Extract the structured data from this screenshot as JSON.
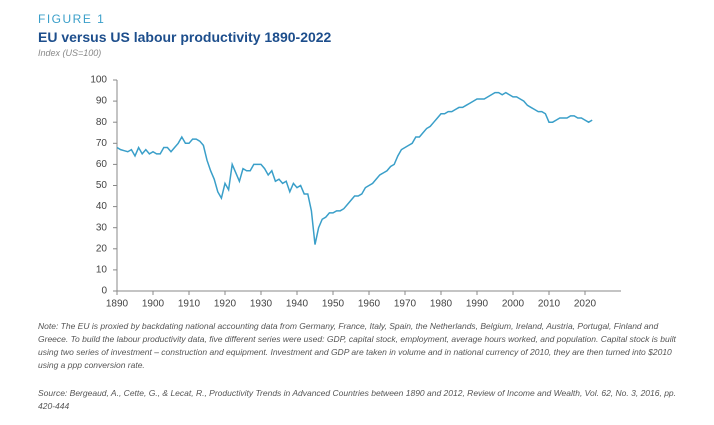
{
  "chart_data": {
    "type": "line",
    "figure_label": "FIGURE 1",
    "title": "EU versus US labour productivity 1890-2022",
    "subtitle": "Index (US=100)",
    "note": "Note: The EU is proxied by backdating national accounting data from Germany, France, Italy, Spain, the Netherlands, Belgium, Ireland, Austria, Portugal, Finland and Greece. To build the labour productivity data, five different series were used: GDP, capital stock, employment, average hours worked, and population. Capital stock is built using two series of investment – construction and equipment. Investment and GDP are taken in volume and in national currency of 2010, they are then turned into $2010 using a ppp conversion rate.",
    "source": "Source: Bergeaud, A., Cette, G., & Lecat, R., Productivity Trends in Advanced Countries between 1890 and 2012, Review of Income and Wealth, Vol. 62, No. 3, 2016, pp. 420-444",
    "x": [
      1890,
      1891,
      1892,
      1893,
      1894,
      1895,
      1896,
      1897,
      1898,
      1899,
      1900,
      1901,
      1902,
      1903,
      1904,
      1905,
      1906,
      1907,
      1908,
      1909,
      1910,
      1911,
      1912,
      1913,
      1914,
      1915,
      1916,
      1917,
      1918,
      1919,
      1920,
      1921,
      1922,
      1923,
      1924,
      1925,
      1926,
      1927,
      1928,
      1929,
      1930,
      1931,
      1932,
      1933,
      1934,
      1935,
      1936,
      1937,
      1938,
      1939,
      1940,
      1941,
      1942,
      1943,
      1944,
      1945,
      1946,
      1947,
      1948,
      1949,
      1950,
      1951,
      1952,
      1953,
      1954,
      1955,
      1956,
      1957,
      1958,
      1959,
      1960,
      1961,
      1962,
      1963,
      1964,
      1965,
      1966,
      1967,
      1968,
      1969,
      1970,
      1971,
      1972,
      1973,
      1974,
      1975,
      1976,
      1977,
      1978,
      1979,
      1980,
      1981,
      1982,
      1983,
      1984,
      1985,
      1986,
      1987,
      1988,
      1989,
      1990,
      1991,
      1992,
      1993,
      1994,
      1995,
      1996,
      1997,
      1998,
      1999,
      2000,
      2001,
      2002,
      2003,
      2004,
      2005,
      2006,
      2007,
      2008,
      2009,
      2010,
      2011,
      2012,
      2013,
      2014,
      2015,
      2016,
      2017,
      2018,
      2019,
      2020,
      2021,
      2022
    ],
    "series": [
      {
        "color": "#3a9fc9",
        "values": [
          68,
          67,
          66.5,
          66,
          67,
          64,
          68,
          65,
          67,
          65,
          66,
          65,
          65,
          68,
          68,
          66,
          68,
          70,
          73,
          70,
          70,
          72,
          72,
          71,
          69,
          62,
          57,
          53,
          47,
          44,
          51,
          48,
          60,
          56,
          52,
          58,
          57,
          57,
          60,
          60,
          60,
          58,
          55,
          57,
          52,
          53,
          51,
          52,
          47,
          51,
          49,
          50,
          46,
          46,
          38,
          22,
          30,
          34,
          35,
          37,
          37,
          38,
          38,
          39,
          41,
          43,
          45,
          45,
          46,
          49,
          50,
          51,
          53,
          55,
          56,
          57,
          59,
          60,
          64,
          67,
          68,
          69,
          70,
          73,
          73,
          75,
          77,
          78,
          80,
          82,
          84,
          84,
          85,
          85,
          86,
          87,
          87,
          88,
          89,
          90,
          91,
          91,
          91,
          92,
          93,
          94,
          94,
          93,
          94,
          93,
          92,
          92,
          91,
          90,
          88,
          87,
          86,
          85,
          85,
          84,
          80,
          80,
          81,
          82,
          82,
          82,
          83,
          83,
          82,
          82,
          81,
          80,
          81
        ]
      }
    ],
    "xlim": [
      1890,
      2030
    ],
    "ylim": [
      0,
      100
    ],
    "xticks": [
      1890,
      1900,
      1910,
      1920,
      1930,
      1940,
      1950,
      1960,
      1970,
      1980,
      1990,
      2000,
      2010,
      2020
    ],
    "yticks": [
      0,
      10,
      20,
      30,
      40,
      50,
      60,
      70,
      80,
      90,
      100
    ],
    "grid": false
  }
}
